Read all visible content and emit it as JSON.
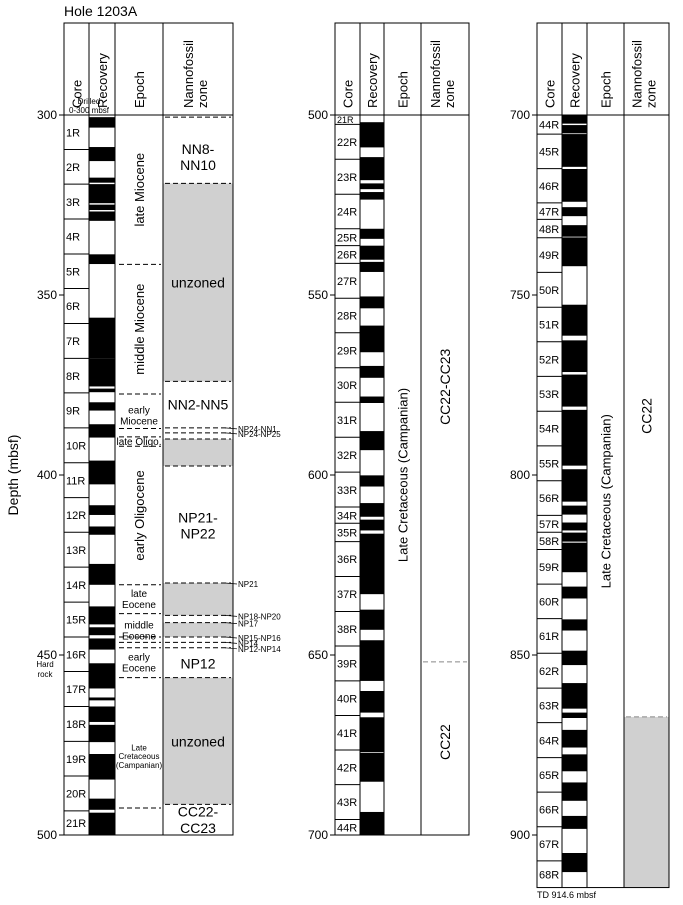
{
  "title": "Hole 1203A",
  "y_axis_label": "Depth (mbsf)",
  "headers": {
    "core": "Core",
    "recovery": "Recovery",
    "epoch": "Epoch",
    "nanno_line1": "Nannofossil",
    "nanno_line2": "zone"
  },
  "drilled_line1": "Drilled",
  "drilled_line2": "0-300 mbsf",
  "hard_rock_line1": "Hard",
  "hard_rock_line2": "rock",
  "td_label": "TD 914.6 mbsf",
  "columns": [
    {
      "depth_range": [
        300,
        500
      ],
      "ticks": [
        "300",
        "350",
        "400",
        "450",
        "500"
      ],
      "cores": [
        {
          "label": "1R",
          "top": 300,
          "bottom": 309.6
        },
        {
          "label": "2R",
          "top": 309.6,
          "bottom": 319.2
        },
        {
          "label": "3R",
          "top": 319.2,
          "bottom": 328.9
        },
        {
          "label": "4R",
          "top": 328.9,
          "bottom": 338.6
        },
        {
          "label": "5R",
          "top": 338.6,
          "bottom": 348.2
        },
        {
          "label": "6R",
          "top": 348.2,
          "bottom": 357.9
        },
        {
          "label": "7R",
          "top": 357.9,
          "bottom": 367.6
        },
        {
          "label": "8R",
          "top": 367.6,
          "bottom": 377.2
        },
        {
          "label": "9R",
          "top": 377.2,
          "bottom": 386.9
        },
        {
          "label": "10R",
          "top": 386.9,
          "bottom": 396.6
        },
        {
          "label": "11R",
          "top": 396.6,
          "bottom": 406.3
        },
        {
          "label": "12R",
          "top": 406.3,
          "bottom": 415.9
        },
        {
          "label": "13R",
          "top": 415.9,
          "bottom": 425.6
        },
        {
          "label": "14R",
          "top": 425.6,
          "bottom": 435.3
        },
        {
          "label": "15R",
          "top": 435.3,
          "bottom": 445.0
        },
        {
          "label": "16R",
          "top": 445.0,
          "bottom": 454.6
        },
        {
          "label": "17R",
          "top": 454.6,
          "bottom": 464.3
        },
        {
          "label": "18R",
          "top": 464.3,
          "bottom": 474.0
        },
        {
          "label": "19R",
          "top": 474.0,
          "bottom": 483.6
        },
        {
          "label": "20R",
          "top": 483.6,
          "bottom": 493.3
        },
        {
          "label": "21R",
          "top": 493.3,
          "bottom": 500
        }
      ],
      "recovery": [
        [
          300.6,
          303.5
        ],
        [
          308.9,
          312.8
        ],
        [
          317.4,
          318.8
        ],
        [
          319.2,
          324.5
        ],
        [
          324.9,
          326.4
        ],
        [
          326.8,
          329.4
        ],
        [
          338.7,
          341.4
        ],
        [
          356.3,
          367.6
        ],
        [
          367.6,
          375.4
        ],
        [
          376.0,
          377.0
        ],
        [
          379.8,
          382.1
        ],
        [
          385.9,
          389.6
        ],
        [
          396.0,
          402.6
        ],
        [
          408.4,
          411.1
        ],
        [
          414.3,
          416.6
        ],
        [
          424.7,
          430.5
        ],
        [
          436.5,
          441.5
        ],
        [
          442.3,
          444.5
        ],
        [
          445.4,
          448.5
        ],
        [
          452.3,
          459.3
        ],
        [
          461.8,
          462.6
        ],
        [
          464.3,
          468.6
        ],
        [
          469.4,
          474.2
        ],
        [
          477.5,
          484.6
        ],
        [
          489.9,
          493.0
        ],
        [
          493.8,
          500.0
        ]
      ],
      "epochs": [
        {
          "lines": [
            "late Miocene"
          ],
          "top": 300,
          "bottom": 341.5,
          "vertical": true
        },
        {
          "lines": [
            "middle Miocene"
          ],
          "top": 341.5,
          "bottom": 377.5,
          "vertical": true
        },
        {
          "lines": [
            "early",
            "Miocene"
          ],
          "top": 377.5,
          "bottom": 389.4,
          "vertical": false
        },
        {
          "lines": [
            "late Oligo."
          ],
          "top": 389.4,
          "bottom": 392.0,
          "vertical": false
        },
        {
          "lines": [
            "early Oligocene"
          ],
          "top": 392.0,
          "bottom": 430.5,
          "vertical": true
        },
        {
          "lines": [
            "late",
            "Eocene"
          ],
          "top": 430.5,
          "bottom": 438.5,
          "vertical": false
        },
        {
          "lines": [
            "middle",
            "Eocene"
          ],
          "top": 438.5,
          "bottom": 448.0,
          "vertical": false
        },
        {
          "lines": [
            "early",
            "Eocene"
          ],
          "top": 448.0,
          "bottom": 456.3,
          "vertical": false
        },
        {
          "lines": [
            "Late",
            "Cretaceous",
            "(Campanian)"
          ],
          "top": 456.3,
          "bottom": 500,
          "vertical": false
        }
      ],
      "epoch_dashes": [
        341.5,
        377.5,
        387.1,
        389.4,
        392.0,
        430.5,
        438.5,
        445.0,
        446.5,
        448.0,
        456.3,
        492.5
      ],
      "gray_zones": [
        [
          319.0,
          374.0
        ],
        [
          390.0,
          397.5
        ],
        [
          430.0,
          439.0
        ],
        [
          441.0,
          445.0
        ],
        [
          456.3,
          491.5
        ]
      ],
      "zone_dashes": [
        300.6,
        319.0,
        374.0,
        386.9,
        388.3,
        390.0,
        397.5,
        430.0,
        439.0,
        441.0,
        445.0,
        446.5,
        448.0,
        456.3,
        491.5
      ],
      "zones": [
        {
          "lines": [
            "NN8-",
            "NN10"
          ],
          "center": 311.6
        },
        {
          "lines": [
            "unzoned"
          ],
          "center": 346.5
        },
        {
          "lines": [
            "NN2-NN5"
          ],
          "center": 380.5
        },
        {
          "lines": [
            "NP21-",
            "NP22"
          ],
          "center": 414.0
        },
        {
          "lines": [
            "NP12"
          ],
          "center": 452.4
        },
        {
          "lines": [
            "unzoned"
          ],
          "center": 474.0
        },
        {
          "lines": [
            "CC22-",
            "CC23"
          ],
          "center": 495.7
        }
      ],
      "callouts": [
        {
          "label": "NP24-NN1",
          "depth": 386.9
        },
        {
          "label": "NP24-NP25",
          "depth": 388.3
        },
        {
          "label": "NP21",
          "depth": 430.0
        },
        {
          "label": "NP18-NP20",
          "depth": 439.0
        },
        {
          "label": "NP17",
          "depth": 441.0
        },
        {
          "label": "NP15-NP16",
          "depth": 445.0
        },
        {
          "label": "NP14",
          "depth": 446.5
        },
        {
          "label": "NP12-NP14",
          "depth": 448.0
        }
      ]
    },
    {
      "depth_range": [
        500,
        700
      ],
      "ticks": [
        "500",
        "550",
        "600",
        "650",
        "700"
      ],
      "cores": [
        {
          "label": "21R",
          "top": 500,
          "bottom": 502.6
        },
        {
          "label": "22R",
          "top": 502.6,
          "bottom": 512.3
        },
        {
          "label": "23R",
          "top": 512.3,
          "bottom": 522.0
        },
        {
          "label": "24R",
          "top": 522.0,
          "bottom": 531.6
        },
        {
          "label": "25R",
          "top": 531.6,
          "bottom": 536.3
        },
        {
          "label": "26R",
          "top": 536.3,
          "bottom": 541.2
        },
        {
          "label": "27R",
          "top": 541.2,
          "bottom": 550.9
        },
        {
          "label": "28R",
          "top": 550.9,
          "bottom": 560.5
        },
        {
          "label": "29R",
          "top": 560.5,
          "bottom": 570.2
        },
        {
          "label": "30R",
          "top": 570.2,
          "bottom": 579.8
        },
        {
          "label": "31R",
          "top": 579.8,
          "bottom": 589.5
        },
        {
          "label": "32R",
          "top": 589.5,
          "bottom": 599.2
        },
        {
          "label": "33R",
          "top": 599.2,
          "bottom": 608.9
        },
        {
          "label": "34R",
          "top": 608.9,
          "bottom": 613.4
        },
        {
          "label": "35R",
          "top": 613.4,
          "bottom": 618.5
        },
        {
          "label": "36R",
          "top": 618.5,
          "bottom": 628.2
        },
        {
          "label": "37R",
          "top": 628.2,
          "bottom": 637.9
        },
        {
          "label": "38R",
          "top": 637.9,
          "bottom": 647.5
        },
        {
          "label": "39R",
          "top": 647.5,
          "bottom": 657.2
        },
        {
          "label": "40R",
          "top": 657.2,
          "bottom": 666.8
        },
        {
          "label": "41R",
          "top": 666.8,
          "bottom": 676.4
        },
        {
          "label": "42R",
          "top": 676.4,
          "bottom": 686.0
        },
        {
          "label": "43R",
          "top": 686.0,
          "bottom": 695.7
        },
        {
          "label": "44R",
          "top": 695.7,
          "bottom": 700
        }
      ],
      "recovery": [
        [
          502.0,
          509.0
        ],
        [
          511.7,
          518.1
        ],
        [
          519.0,
          520.6
        ],
        [
          521.4,
          523.5
        ],
        [
          531.6,
          534.4
        ],
        [
          536.3,
          540.2
        ],
        [
          540.8,
          543.6
        ],
        [
          550.4,
          553.7
        ],
        [
          558.5,
          565.9
        ],
        [
          569.7,
          573.0
        ],
        [
          578.2,
          580.0
        ],
        [
          587.8,
          593.1
        ],
        [
          600.1,
          603.2
        ],
        [
          607.8,
          611.6
        ],
        [
          612.4,
          615.4
        ],
        [
          616.3,
          633.1
        ],
        [
          637.4,
          643.0
        ],
        [
          645.9,
          657.2
        ],
        [
          660.0,
          666.0
        ],
        [
          667.3,
          677.0
        ],
        [
          677.2,
          685.2
        ],
        [
          693.6,
          700.0
        ]
      ],
      "epochs": [
        {
          "lines": [
            "Late Cretaceous (Campanian)"
          ],
          "top": 500,
          "bottom": 700,
          "vertical": true
        }
      ],
      "epoch_dashes": [],
      "gray_zones": [],
      "zone_dashes": [
        651.9
      ],
      "zones": [
        {
          "lines": [
            "CC22-CC23"
          ],
          "center": 575.5,
          "vertical": true
        },
        {
          "lines": [
            "CC22"
          ],
          "center": 674.2,
          "vertical": true
        }
      ],
      "callouts": []
    },
    {
      "depth_range": [
        700,
        914.6
      ],
      "ticks": [
        "700",
        "750",
        "800",
        "850",
        "900"
      ],
      "cores": [
        {
          "label": "44R",
          "top": 700,
          "bottom": 705.3
        },
        {
          "label": "45R",
          "top": 705.3,
          "bottom": 714.9
        },
        {
          "label": "46R",
          "top": 714.9,
          "bottom": 724.4
        },
        {
          "label": "47R",
          "top": 724.4,
          "bottom": 729.0
        },
        {
          "label": "48R",
          "top": 729.0,
          "bottom": 734.1
        },
        {
          "label": "49R",
          "top": 734.1,
          "bottom": 743.7
        },
        {
          "label": "50R",
          "top": 743.7,
          "bottom": 753.4
        },
        {
          "label": "51R",
          "top": 753.4,
          "bottom": 763.0
        },
        {
          "label": "52R",
          "top": 763.0,
          "bottom": 772.6
        },
        {
          "label": "53R",
          "top": 772.6,
          "bottom": 782.3
        },
        {
          "label": "54R",
          "top": 782.3,
          "bottom": 791.9
        },
        {
          "label": "55R",
          "top": 791.9,
          "bottom": 801.6
        },
        {
          "label": "56R",
          "top": 801.6,
          "bottom": 811.2
        },
        {
          "label": "57R",
          "top": 811.2,
          "bottom": 815.9
        },
        {
          "label": "58R",
          "top": 815.9,
          "bottom": 820.7
        },
        {
          "label": "59R",
          "top": 820.7,
          "bottom": 830.3
        },
        {
          "label": "60R",
          "top": 830.3,
          "bottom": 839.9
        },
        {
          "label": "61R",
          "top": 839.9,
          "bottom": 849.5
        },
        {
          "label": "62R",
          "top": 849.5,
          "bottom": 859.2
        },
        {
          "label": "63R",
          "top": 859.2,
          "bottom": 868.8
        },
        {
          "label": "64R",
          "top": 868.8,
          "bottom": 878.5
        },
        {
          "label": "65R",
          "top": 878.5,
          "bottom": 888.1
        },
        {
          "label": "66R",
          "top": 888.1,
          "bottom": 897.7
        },
        {
          "label": "67R",
          "top": 897.7,
          "bottom": 907.2
        },
        {
          "label": "68R",
          "top": 907.2,
          "bottom": 914.6
        }
      ],
      "recovery": [
        [
          700.0,
          702.4
        ],
        [
          702.8,
          705.1
        ],
        [
          705.3,
          714.4
        ],
        [
          715.0,
          724.1
        ],
        [
          725.6,
          728.1
        ],
        [
          730.6,
          733.8
        ],
        [
          734.0,
          742.0
        ],
        [
          752.7,
          761.3
        ],
        [
          762.6,
          771.4
        ],
        [
          772.1,
          781.0
        ],
        [
          781.9,
          791.3
        ],
        [
          790.7,
          797.4
        ],
        [
          798.4,
          807.4
        ],
        [
          808.5,
          811.0
        ],
        [
          813.2,
          815.4
        ],
        [
          816.0,
          818.5
        ],
        [
          818.8,
          827.0
        ],
        [
          831.0,
          834.3
        ],
        [
          840.1,
          843.2
        ],
        [
          848.8,
          852.8
        ],
        [
          857.8,
          864.9
        ],
        [
          866.0,
          867.5
        ],
        [
          870.8,
          875.7
        ],
        [
          877.6,
          882.3
        ],
        [
          885.4,
          890.5
        ],
        [
          894.7,
          898.3
        ],
        [
          905.0,
          910.3
        ]
      ],
      "epochs": [
        {
          "lines": [
            "Late Cretaceous (Campanian)"
          ],
          "top": 700,
          "bottom": 914.6,
          "vertical": true
        }
      ],
      "epoch_dashes": [],
      "gray_zones": [
        [
          867.2,
          914.6
        ]
      ],
      "zone_dashes": [
        867.2
      ],
      "zones": [
        {
          "lines": [
            "CC22"
          ],
          "center": 783.6,
          "vertical": true
        }
      ],
      "callouts": []
    }
  ]
}
